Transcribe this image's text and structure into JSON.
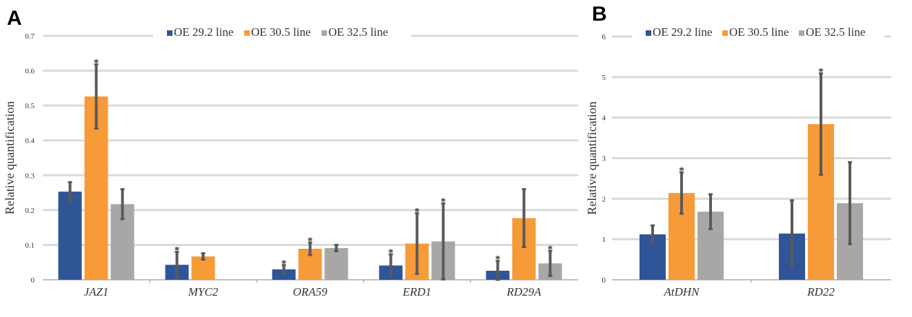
{
  "colors": {
    "grid": "#d9d9d9",
    "axis": "#bfbfbf",
    "err": "#595959"
  },
  "chart_data": [
    {
      "panel_label": "A",
      "type": "bar",
      "ylabel": "Relative quantification",
      "ylim": [
        0,
        0.7
      ],
      "yticks": [
        0,
        0.1,
        0.2,
        0.3,
        0.4,
        0.5,
        0.6,
        0.7
      ],
      "ytick_labels": [
        "0",
        "0.1",
        "0.2",
        "0.3",
        "0.4",
        "0.5",
        "0.6",
        "0.7"
      ],
      "grid": true,
      "legend_position": "top",
      "categories": [
        "JAZ1",
        "MYC2",
        "ORA59",
        "ERD1",
        "RD29A"
      ],
      "series": [
        {
          "name": "OE 29.2 line",
          "color": "#2f5597",
          "values": [
            0.253,
            0.043,
            0.03,
            0.041,
            0.026
          ],
          "errors": [
            0.027,
            0.037,
            0.012,
            0.032,
            0.028
          ],
          "sig": [
            false,
            true,
            true,
            true,
            true
          ]
        },
        {
          "name": "OE 30.5 line",
          "color": "#f79a38",
          "values": [
            0.526,
            0.067,
            0.089,
            0.104,
            0.177
          ],
          "errors": [
            0.092,
            0.009,
            0.018,
            0.087,
            0.083
          ],
          "sig": [
            true,
            false,
            true,
            true,
            false
          ]
        },
        {
          "name": "OE 32.5 line",
          "color": "#a9a6a6",
          "values": [
            0.217,
            null,
            0.091,
            0.11,
            0.047
          ],
          "errors": [
            0.043,
            0,
            0.009,
            0.109,
            0.036
          ],
          "sig": [
            false,
            false,
            false,
            true,
            true
          ]
        }
      ]
    },
    {
      "panel_label": "B",
      "type": "bar",
      "ylabel": "Relative quantification",
      "ylim": [
        0,
        6
      ],
      "yticks": [
        0,
        1,
        2,
        3,
        4,
        5,
        6
      ],
      "ytick_labels": [
        "0",
        "1",
        "2",
        "3",
        "4",
        "5",
        "6"
      ],
      "grid": true,
      "legend_position": "top",
      "categories": [
        "AtDHN",
        "RD22"
      ],
      "series": [
        {
          "name": "OE 29.2 line",
          "color": "#2f5597",
          "values": [
            1.12,
            1.14
          ],
          "errors": [
            0.22,
            0.82
          ],
          "sig": [
            false,
            false
          ]
        },
        {
          "name": "OE 30.5 line",
          "color": "#f79a38",
          "values": [
            2.14,
            3.84
          ],
          "errors": [
            0.51,
            1.25
          ],
          "sig": [
            true,
            true
          ]
        },
        {
          "name": "OE 32.5 line",
          "color": "#a9a6a6",
          "values": [
            1.68,
            1.89
          ],
          "errors": [
            0.43,
            1.01
          ],
          "sig": [
            false,
            false
          ]
        }
      ]
    }
  ]
}
